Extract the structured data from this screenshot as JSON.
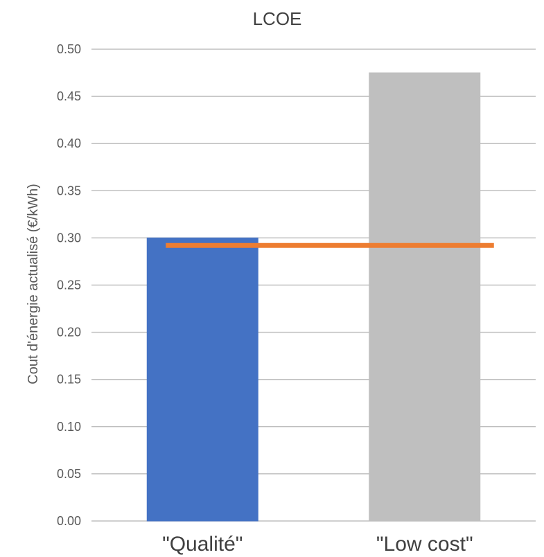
{
  "chart_data": {
    "type": "bar",
    "title": "LCOE",
    "xlabel": "",
    "ylabel": "Cout d'énergie actualisé  (€/kWh)",
    "categories": [
      "\"Qualité\"",
      "\"Low cost\""
    ],
    "values": [
      0.3,
      0.475
    ],
    "bar_colors": [
      "#4472c4",
      "#bfbfbf"
    ],
    "reference_line": {
      "value": 0.292,
      "color": "#ed7d31"
    },
    "ylim": [
      0,
      0.5
    ],
    "yticks": [
      "0.00",
      "0.05",
      "0.10",
      "0.15",
      "0.20",
      "0.25",
      "0.30",
      "0.35",
      "0.40",
      "0.45",
      "0.50"
    ],
    "grid": true,
    "legend": "none"
  }
}
